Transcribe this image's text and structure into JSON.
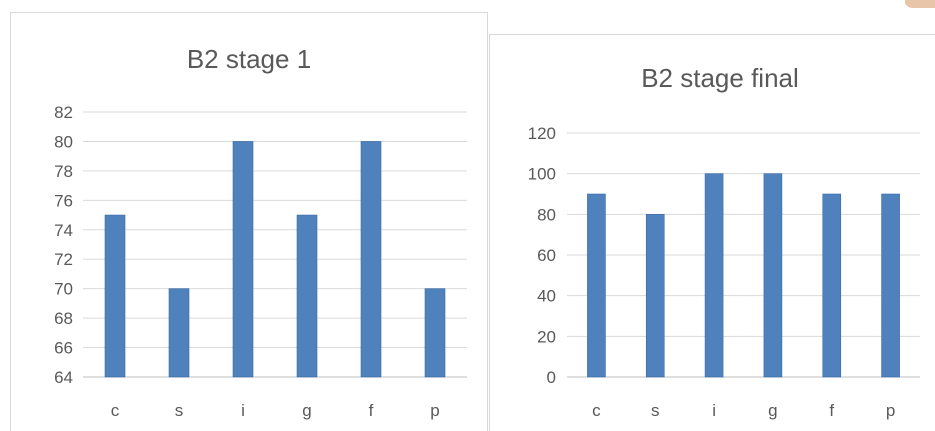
{
  "corner_mark_color": "#e8c4a8",
  "chart_data": [
    {
      "type": "bar",
      "title": "B2 stage 1",
      "xlabel": "",
      "ylabel": "",
      "categories": [
        "c",
        "s",
        "i",
        "g",
        "f",
        "p"
      ],
      "values": [
        75,
        70,
        80,
        75,
        80,
        70
      ],
      "ylim": [
        64,
        82
      ],
      "yticks": [
        64,
        66,
        68,
        70,
        72,
        74,
        76,
        78,
        80,
        82
      ],
      "grid": true,
      "legend": "none",
      "bar_color": "#4f81bd"
    },
    {
      "type": "bar",
      "title": "B2 stage final",
      "xlabel": "",
      "ylabel": "",
      "categories": [
        "c",
        "s",
        "i",
        "g",
        "f",
        "p"
      ],
      "values": [
        90,
        80,
        100,
        100,
        90,
        90
      ],
      "ylim": [
        0,
        120
      ],
      "yticks": [
        0,
        20,
        40,
        60,
        80,
        100,
        120
      ],
      "grid": true,
      "legend": "none",
      "bar_color": "#4f81bd"
    }
  ]
}
